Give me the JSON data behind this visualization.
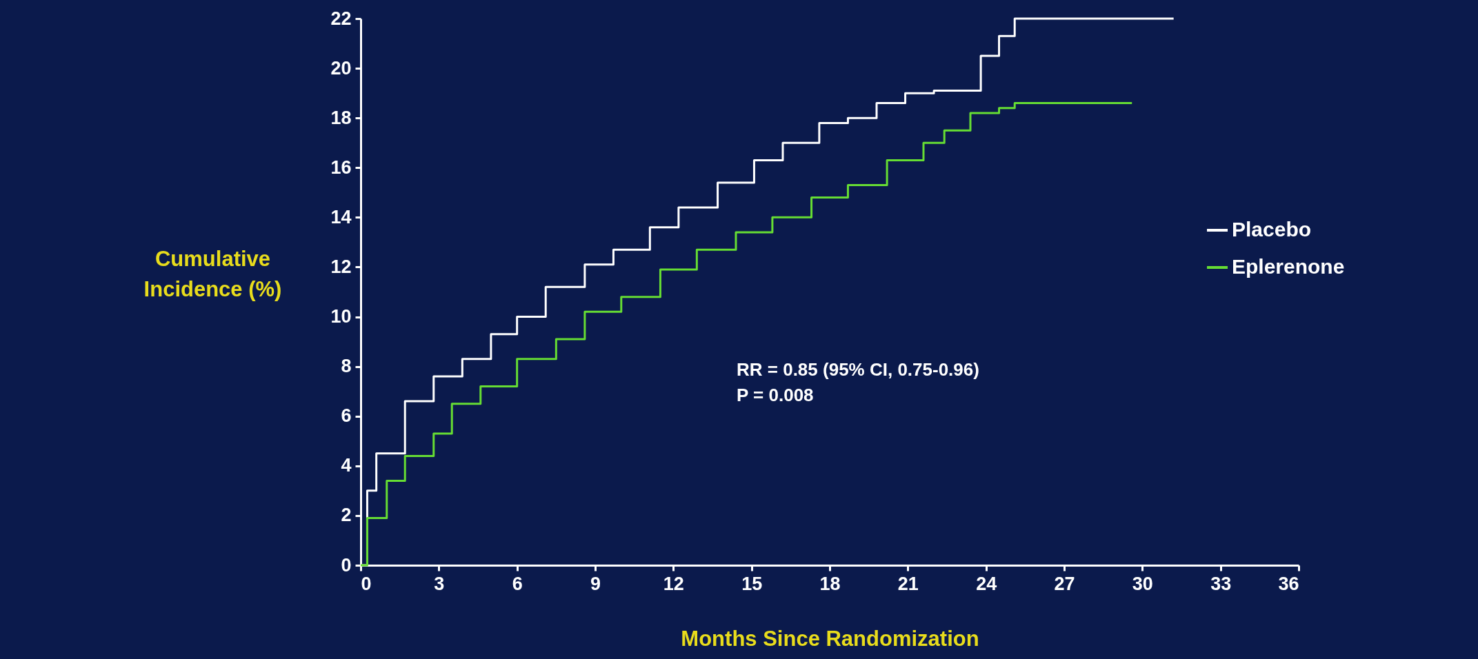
{
  "chart_data": {
    "type": "step",
    "xlabel": "Months Since Randomization",
    "ylabel": "Cumulative Incidence (%)",
    "xlim": [
      0,
      36
    ],
    "xticks": [
      0,
      3,
      6,
      9,
      12,
      15,
      18,
      21,
      24,
      27,
      30,
      33,
      36
    ],
    "ylim": [
      0,
      22
    ],
    "yticks": [
      0,
      2,
      4,
      6,
      8,
      10,
      12,
      14,
      16,
      18,
      20,
      22
    ],
    "grid": false,
    "legend": "right",
    "annotations": [
      "RR = 0.85 (95% CI, 0.75-0.96)",
      "P = 0.008"
    ],
    "series": [
      {
        "name": "Placebo",
        "color": "#ffffff",
        "x": [
          0,
          0.25,
          0.6,
          1.7,
          2.8,
          3.9,
          5,
          6,
          7.1,
          8.6,
          9.7,
          11.1,
          12.2,
          13.7,
          15.1,
          16.2,
          17.6,
          18.7,
          19.8,
          20.9,
          22,
          23.1,
          23.8,
          24.5,
          25.1,
          31.2
        ],
        "values": [
          0,
          3.0,
          4.5,
          6.6,
          7.6,
          8.3,
          9.3,
          10.0,
          11.2,
          12.1,
          12.7,
          13.6,
          14.4,
          15.4,
          16.3,
          17.0,
          17.8,
          18.0,
          18.6,
          19.0,
          19.1,
          19.1,
          20.5,
          21.3,
          22.0,
          22.0
        ]
      },
      {
        "name": "Eplerenone",
        "color": "#66dd33",
        "x": [
          0,
          0.25,
          1,
          1.7,
          2.8,
          3.5,
          4.6,
          6,
          7.5,
          8.6,
          10,
          11.5,
          12.9,
          14.4,
          15.8,
          17.3,
          18.7,
          20.2,
          21.6,
          22.4,
          23.4,
          24.5,
          25.1,
          29.6
        ],
        "values": [
          0,
          1.9,
          3.4,
          4.4,
          5.3,
          6.5,
          7.2,
          8.3,
          9.1,
          10.2,
          10.8,
          11.9,
          12.7,
          13.4,
          14.0,
          14.8,
          15.3,
          16.3,
          17.0,
          17.5,
          18.2,
          18.4,
          18.6,
          18.6
        ]
      }
    ]
  }
}
